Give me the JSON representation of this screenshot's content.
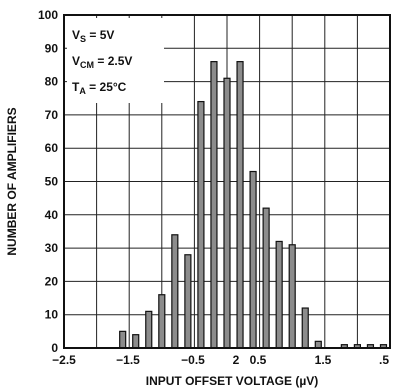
{
  "chart_data": {
    "type": "bar",
    "xlabel": "INPUT OFFSET VOLTAGE (µV)",
    "ylabel": "NUMBER OF AMPLIFIERS",
    "xlim": [
      -2.5,
      2.5
    ],
    "ylim": [
      0,
      100
    ],
    "x_tick_labels": [
      "−2.5",
      "−1.5",
      "−0.5",
      "2",
      "0.5",
      "1.5",
      ".5"
    ],
    "y_ticks": [
      0,
      10,
      20,
      30,
      40,
      50,
      60,
      70,
      80,
      90,
      100
    ],
    "grid": true,
    "annotations": {
      "vs": {
        "main": "V",
        "sub": "S",
        "rest": " = 5V"
      },
      "vcm": {
        "main": "V",
        "sub": "CM",
        "rest": " = 2.5V"
      },
      "ta": {
        "main": "T",
        "sub": "A",
        "rest": " = 25°C"
      }
    },
    "bins": [
      -1.6,
      -1.4,
      -1.2,
      -1.0,
      -0.8,
      -0.6,
      -0.4,
      -0.2,
      0.0,
      0.2,
      0.4,
      0.6,
      0.8,
      1.0,
      1.2,
      1.4,
      1.6,
      1.8,
      2.0,
      2.2,
      2.4
    ],
    "values": [
      5,
      4,
      11,
      16,
      34,
      28,
      74,
      86,
      81,
      86,
      53,
      42,
      32,
      31,
      12,
      2,
      0,
      1,
      1,
      1,
      1
    ],
    "bar_color": "#8c8c8c"
  }
}
